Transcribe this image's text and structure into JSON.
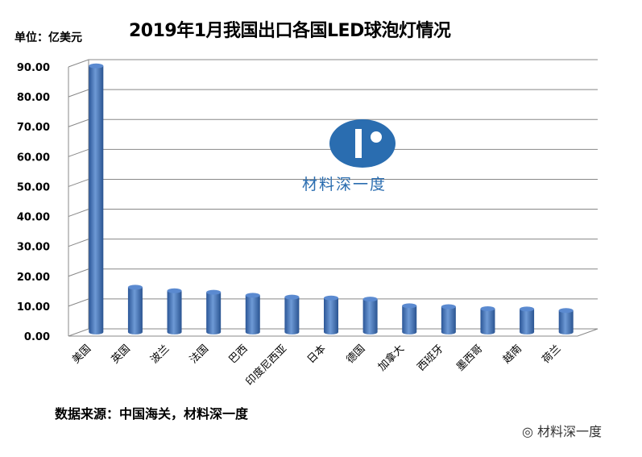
{
  "chart_data": {
    "type": "bar",
    "title": "2019年1月我国出口各国LED球泡灯情况",
    "unit_label": "单位：亿美元",
    "categories": [
      "美国",
      "英国",
      "波兰",
      "法国",
      "巴西",
      "印度尼西亚",
      "日本",
      "德国",
      "加拿大",
      "西班牙",
      "墨西哥",
      "越南",
      "荷兰"
    ],
    "values": [
      89,
      15,
      13.8,
      13.3,
      12.3,
      11.7,
      11.4,
      11,
      8.8,
      8.5,
      7.8,
      7.7,
      7.2
    ],
    "ylim": [
      0,
      90
    ],
    "yticks": [
      "0.00",
      "10.00",
      "20.00",
      "30.00",
      "40.00",
      "50.00",
      "60.00",
      "70.00",
      "80.00",
      "90.00"
    ],
    "grid": true,
    "legend": "none",
    "bar_color": "#3f72b8"
  },
  "source": "数据来源：中国海关，材料深一度",
  "watermark": "材料深一度",
  "logo_text": "材料深一度"
}
